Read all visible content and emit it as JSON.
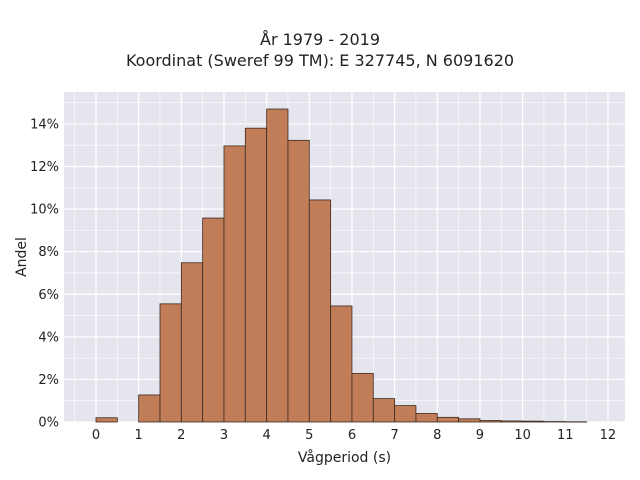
{
  "chart_data": {
    "type": "bar",
    "title": "År 1979 - 2019",
    "subtitle": "Koordinat (Sweref 99 TM): E 327745, N 6091620",
    "xlabel": "Vågperiod (s)",
    "ylabel": "Andel",
    "xlim": [
      -0.75,
      12.4
    ],
    "ylim": [
      0,
      0.155
    ],
    "x_ticks": [
      0,
      1,
      2,
      3,
      4,
      5,
      6,
      7,
      8,
      9,
      10,
      11,
      12
    ],
    "x_tick_labels": [
      "0",
      "1",
      "2",
      "3",
      "4",
      "5",
      "6",
      "7",
      "8",
      "9",
      "10",
      "11",
      "12"
    ],
    "y_ticks": [
      0,
      0.02,
      0.04,
      0.06,
      0.08,
      0.1,
      0.12,
      0.14
    ],
    "y_tick_labels": [
      "0%",
      "2%",
      "4%",
      "6%",
      "8%",
      "10%",
      "12%",
      "14%"
    ],
    "bin_width": 0.5,
    "bins": [
      {
        "start": 0.0,
        "value": 0.002
      },
      {
        "start": 0.5,
        "value": 0.0
      },
      {
        "start": 1.0,
        "value": 0.0127
      },
      {
        "start": 1.5,
        "value": 0.0555
      },
      {
        "start": 2.0,
        "value": 0.0748
      },
      {
        "start": 2.5,
        "value": 0.0958
      },
      {
        "start": 3.0,
        "value": 0.1297
      },
      {
        "start": 3.5,
        "value": 0.138
      },
      {
        "start": 4.0,
        "value": 0.147
      },
      {
        "start": 4.5,
        "value": 0.1323
      },
      {
        "start": 5.0,
        "value": 0.1043
      },
      {
        "start": 5.5,
        "value": 0.0545
      },
      {
        "start": 6.0,
        "value": 0.0228
      },
      {
        "start": 6.5,
        "value": 0.011
      },
      {
        "start": 7.0,
        "value": 0.0077
      },
      {
        "start": 7.5,
        "value": 0.004
      },
      {
        "start": 8.0,
        "value": 0.0022
      },
      {
        "start": 8.5,
        "value": 0.0015
      },
      {
        "start": 9.0,
        "value": 0.0007
      },
      {
        "start": 9.5,
        "value": 0.0005
      },
      {
        "start": 10.0,
        "value": 0.0004
      },
      {
        "start": 10.5,
        "value": 0.0002
      },
      {
        "start": 11.0,
        "value": 0.0001
      }
    ],
    "grid": true,
    "colors": {
      "bar_fill": "#c17d57",
      "bar_edge": "#3b2a20",
      "plot_background": "#e5e5ee",
      "grid": "#ffffff"
    }
  }
}
